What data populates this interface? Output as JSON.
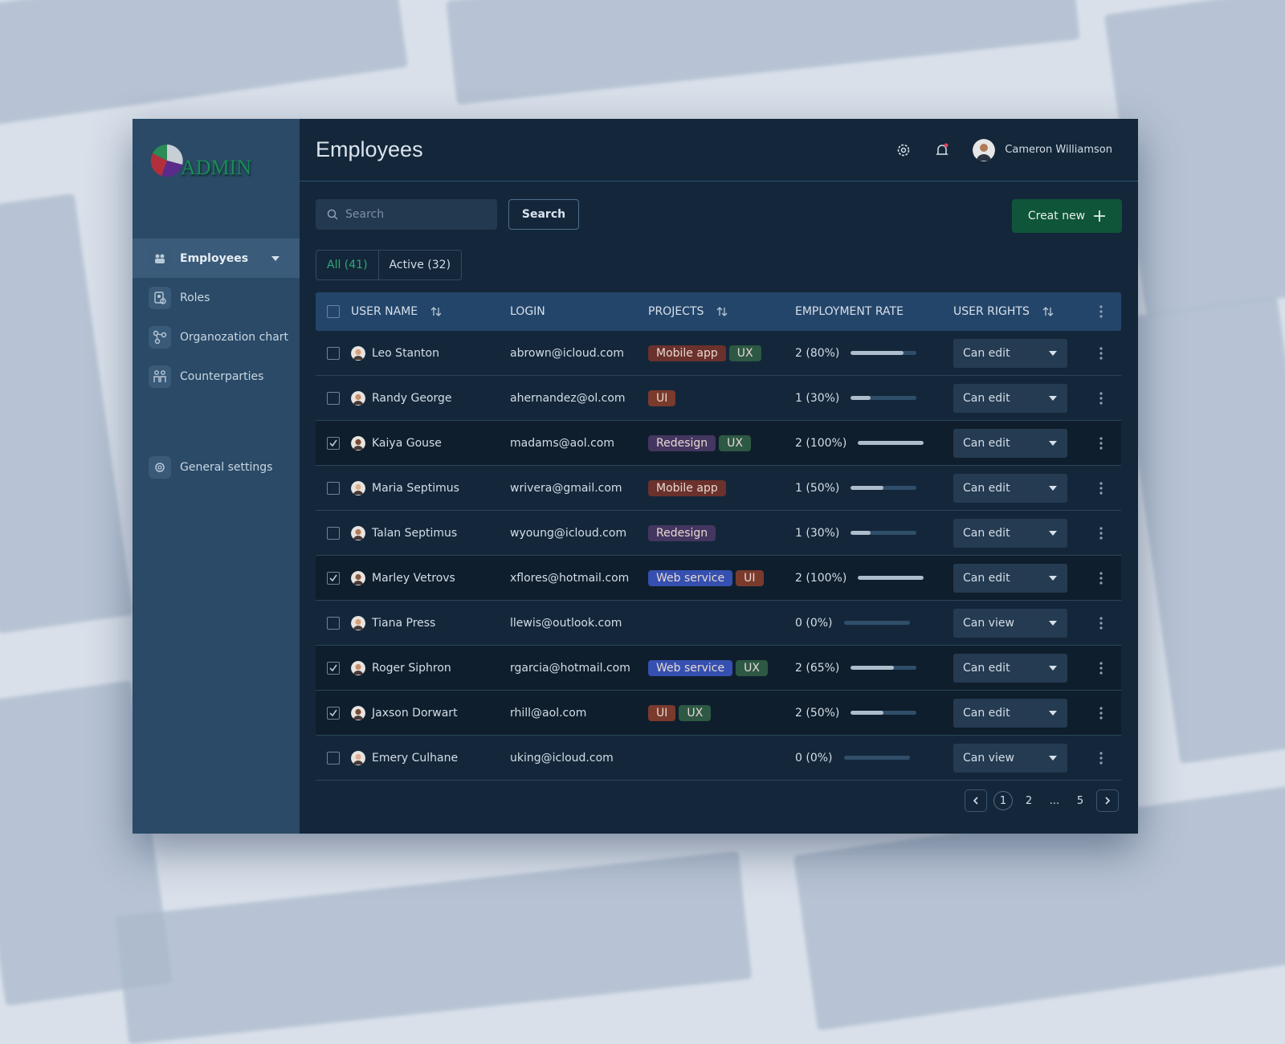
{
  "sidebar": {
    "logo": "ADMIN",
    "nav": [
      {
        "label": "Employees",
        "active": true
      },
      {
        "label": "Roles",
        "active": false
      },
      {
        "label": "Organozation chart",
        "active": false
      },
      {
        "label": "Counterparties",
        "active": false
      }
    ],
    "settings": "General settings"
  },
  "header": {
    "title": "Employees",
    "user": "Cameron Williamson"
  },
  "toolbar": {
    "search_placeholder": "Search",
    "search_button": "Search",
    "create_button": "Creat new",
    "tabs": [
      {
        "label": "All (41)",
        "active": true
      },
      {
        "label": "Active (32)",
        "active": false
      }
    ]
  },
  "table": {
    "columns": [
      {
        "label": "USER NAME",
        "sortable": true
      },
      {
        "label": "LOGIN",
        "sortable": false
      },
      {
        "label": "PROJECTS",
        "sortable": true
      },
      {
        "label": "EMPLOYMENT RATE",
        "sortable": false
      },
      {
        "label": "USER RIGHTS",
        "sortable": true
      }
    ],
    "rows": [
      {
        "name": "Leo Stanton",
        "login": "abrown@icloud.com",
        "checked": false,
        "projects": [
          {
            "name": "Mobile app",
            "color": "#6b312c"
          },
          {
            "name": "UX",
            "color": "#2d5844"
          }
        ],
        "rate_label": "2 (80%)",
        "rate": 80,
        "rights": "Can edit"
      },
      {
        "name": "Randy George",
        "login": "ahernandez@ol.com",
        "checked": false,
        "projects": [
          {
            "name": "UI",
            "color": "#7a3a2c"
          }
        ],
        "rate_label": "1 (30%)",
        "rate": 30,
        "rights": "Can edit"
      },
      {
        "name": "Kaiya Gouse",
        "login": "madams@aol.com",
        "checked": true,
        "projects": [
          {
            "name": "Redesign",
            "color": "#433660"
          },
          {
            "name": "UX",
            "color": "#2d5844"
          }
        ],
        "rate_label": "2 (100%)",
        "rate": 100,
        "rights": "Can edit"
      },
      {
        "name": "Maria Septimus",
        "login": "wrivera@gmail.com",
        "checked": false,
        "projects": [
          {
            "name": "Mobile app",
            "color": "#6b312c"
          }
        ],
        "rate_label": "1 (50%)",
        "rate": 50,
        "rights": "Can edit"
      },
      {
        "name": "Talan Septimus",
        "login": "wyoung@icloud.com",
        "checked": false,
        "projects": [
          {
            "name": "Redesign",
            "color": "#433660"
          }
        ],
        "rate_label": "1 (30%)",
        "rate": 30,
        "rights": "Can edit"
      },
      {
        "name": "Marley Vetrovs",
        "login": "xflores@hotmail.com",
        "checked": true,
        "projects": [
          {
            "name": "Web service",
            "color": "#3550b0"
          },
          {
            "name": "UI",
            "color": "#7a3a2c"
          }
        ],
        "rate_label": "2 (100%)",
        "rate": 100,
        "rights": "Can edit"
      },
      {
        "name": "Tiana Press",
        "login": "llewis@outlook.com",
        "checked": false,
        "projects": [],
        "rate_label": "0 (0%)",
        "rate": 0,
        "rights": "Can view"
      },
      {
        "name": "Roger Siphron",
        "login": "rgarcia@hotmail.com",
        "checked": true,
        "projects": [
          {
            "name": "Web service",
            "color": "#3550b0"
          },
          {
            "name": "UX",
            "color": "#2d5844"
          }
        ],
        "rate_label": "2 (65%)",
        "rate": 65,
        "rights": "Can edit"
      },
      {
        "name": "Jaxson Dorwart",
        "login": "rhill@aol.com",
        "checked": true,
        "projects": [
          {
            "name": "UI",
            "color": "#7a3a2c"
          },
          {
            "name": "UX",
            "color": "#2d5844"
          }
        ],
        "rate_label": "2 (50%)",
        "rate": 50,
        "rights": "Can edit"
      },
      {
        "name": "Emery Culhane",
        "login": "uking@icloud.com",
        "checked": false,
        "projects": [],
        "rate_label": "0 (0%)",
        "rate": 0,
        "rights": "Can view"
      }
    ]
  },
  "pagination": {
    "pages": [
      {
        "label": "1",
        "active": true
      },
      {
        "label": "2",
        "active": false
      },
      {
        "label": "...",
        "active": false
      },
      {
        "label": "5",
        "active": false
      }
    ]
  }
}
